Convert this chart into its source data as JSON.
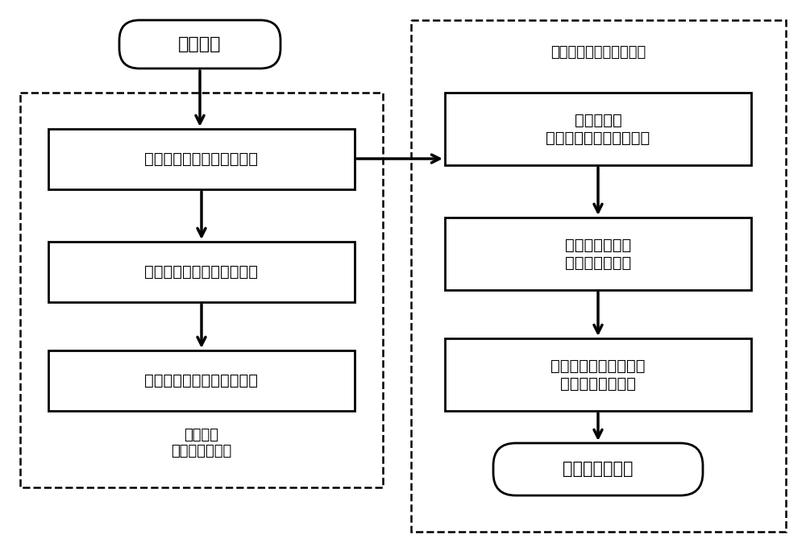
{
  "bg_color": "#ffffff",
  "text_color": "#000000",
  "font_size": 14,
  "label_font_size": 13,
  "start_box": "开始测量",
  "left_boxes": [
    "将靶丸准确定位在猫眼位置",
    "将相机准确定位在成像位置",
    "将靶丸准确定位在共焦位置"
  ],
  "right_boxes": [
    "调整参考臂\n直至出现外表面干涉条纹",
    "驱动参考臂移相\n采集移相干涉图",
    "移相干涉算法提取相位\n解包裹、高通滤波"
  ],
  "end_box": "外表面缺陷结果",
  "left_label": "差动共焦\n外表面精准对焦",
  "right_label": "移相干涉形貌及缺陷测量"
}
